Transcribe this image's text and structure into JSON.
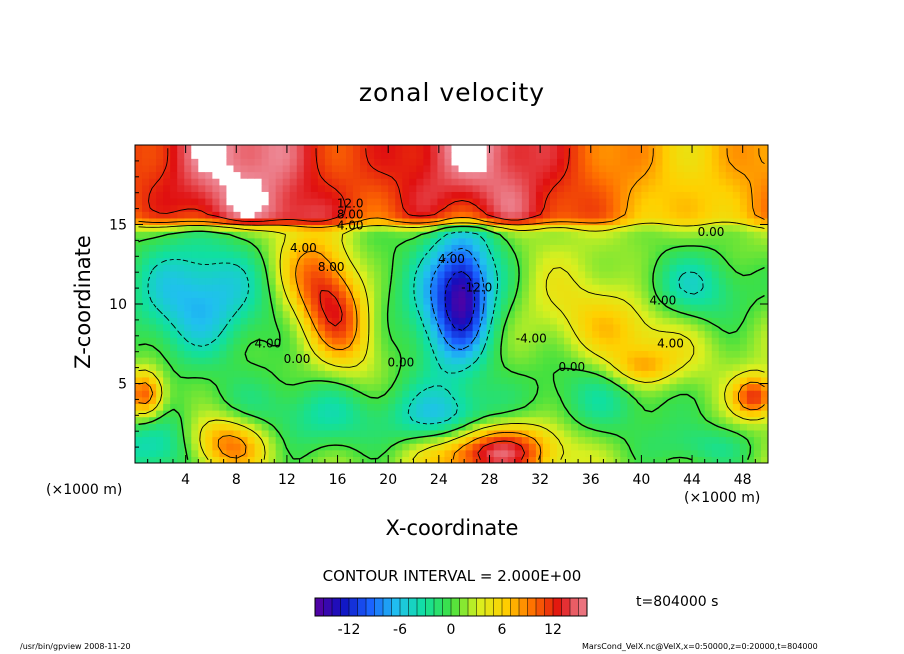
{
  "footer": {
    "left": "/usr/bin/gpview   2008-11-20",
    "right": "MarsCond_VelX.nc@VelX,x=0:50000,z=0:20000,t=804000"
  },
  "chart_data": {
    "type": "heatmap",
    "title": "zonal velocity",
    "xlabel": "X-coordinate",
    "ylabel": "Z-coordinate",
    "x_unit_label": "(×1000 m)",
    "xlim": [
      0,
      50
    ],
    "ylim": [
      0,
      20
    ],
    "x_ticks": [
      4,
      8,
      12,
      16,
      20,
      24,
      28,
      32,
      36,
      40,
      44,
      48
    ],
    "y_ticks": [
      5,
      10,
      15
    ],
    "contour_interval_text": "CONTOUR INTERVAL = 2.000E+00",
    "time_text": "t=804000 s",
    "colorbar": {
      "range": [
        -16,
        16
      ],
      "ticks": [
        -12,
        -6,
        0,
        6,
        12
      ],
      "colors": [
        "#5a00a0",
        "#1010c0",
        "#1a60ff",
        "#20c0f0",
        "#10e0a0",
        "#40e040",
        "#d8f020",
        "#ffd000",
        "#ff7000",
        "#e01010",
        "#f0a0b0"
      ]
    },
    "contour_labels": [
      {
        "x": 17,
        "z": 16.3,
        "text": "12.0"
      },
      {
        "x": 17,
        "z": 15.6,
        "text": "8.00"
      },
      {
        "x": 17,
        "z": 14.9,
        "text": "4.00"
      },
      {
        "x": 13.3,
        "z": 13.5,
        "text": "4.00"
      },
      {
        "x": 15.5,
        "z": 12.3,
        "text": "8.00"
      },
      {
        "x": 25,
        "z": 12.8,
        "text": "4.00"
      },
      {
        "x": 27,
        "z": 11.0,
        "text": "-12.0"
      },
      {
        "x": 10.5,
        "z": 7.5,
        "text": "4.00"
      },
      {
        "x": 12.8,
        "z": 6.5,
        "text": "0.00"
      },
      {
        "x": 21,
        "z": 6.3,
        "text": "0.00"
      },
      {
        "x": 31.3,
        "z": 7.8,
        "text": "-4.00"
      },
      {
        "x": 34.5,
        "z": 6.0,
        "text": "0.00"
      },
      {
        "x": 41.7,
        "z": 10.2,
        "text": "4.00"
      },
      {
        "x": 42.3,
        "z": 7.5,
        "text": "4.00"
      },
      {
        "x": 45.5,
        "z": 14.5,
        "text": "0.00"
      }
    ],
    "blobs": [
      {
        "x": 25.5,
        "z": 10.5,
        "rx": 3.2,
        "rz": 4.8,
        "amp": -14,
        "rot": -8
      },
      {
        "x": 26,
        "z": 10.5,
        "rx": 1.4,
        "rz": 2.4,
        "amp": -4,
        "rot": 0
      },
      {
        "x": 5,
        "z": 10.5,
        "rx": 5.5,
        "rz": 4,
        "amp": -9,
        "rot": 0
      },
      {
        "x": 19,
        "z": 10,
        "rx": 3,
        "rz": 5,
        "amp": -3,
        "rot": 0
      },
      {
        "x": 38,
        "z": 4.5,
        "rx": 7,
        "rz": 3,
        "amp": -5,
        "rot": 0
      },
      {
        "x": 14,
        "z": 3,
        "rx": 9,
        "rz": 2.5,
        "amp": -5,
        "rot": 0
      },
      {
        "x": 44,
        "z": 11,
        "rx": 5,
        "rz": 2.5,
        "amp": -6,
        "rot": 0
      },
      {
        "x": 2,
        "z": 1,
        "rx": 4,
        "rz": 2,
        "amp": -7,
        "rot": 0
      },
      {
        "x": 25,
        "z": 2.5,
        "rx": 4,
        "rz": 2,
        "amp": -7,
        "rot": 0
      },
      {
        "x": 15.5,
        "z": 10.2,
        "rx": 2.6,
        "rz": 4.6,
        "amp": 12,
        "rot": 36
      },
      {
        "x": 39,
        "z": 8,
        "rx": 6,
        "rz": 3,
        "amp": 6,
        "rot": -20
      },
      {
        "x": 40,
        "z": 6,
        "rx": 2.5,
        "rz": 1.2,
        "amp": 5,
        "rot": 0
      },
      {
        "x": 49,
        "z": 4.2,
        "rx": 1.7,
        "rz": 1.3,
        "amp": 10,
        "rot": 0
      },
      {
        "x": 0.8,
        "z": 4.3,
        "rx": 1.5,
        "rz": 1.5,
        "amp": 10,
        "rot": 0
      },
      {
        "x": 7,
        "z": 1.3,
        "rx": 3.5,
        "rz": 1.8,
        "amp": 10,
        "rot": 0
      },
      {
        "x": 28,
        "z": 0.8,
        "rx": 5,
        "rz": 1.8,
        "amp": 14,
        "rot": 0
      },
      {
        "x": 45,
        "z": 1,
        "rx": 4,
        "rz": 1.5,
        "amp": -4,
        "rot": 0
      }
    ]
  }
}
